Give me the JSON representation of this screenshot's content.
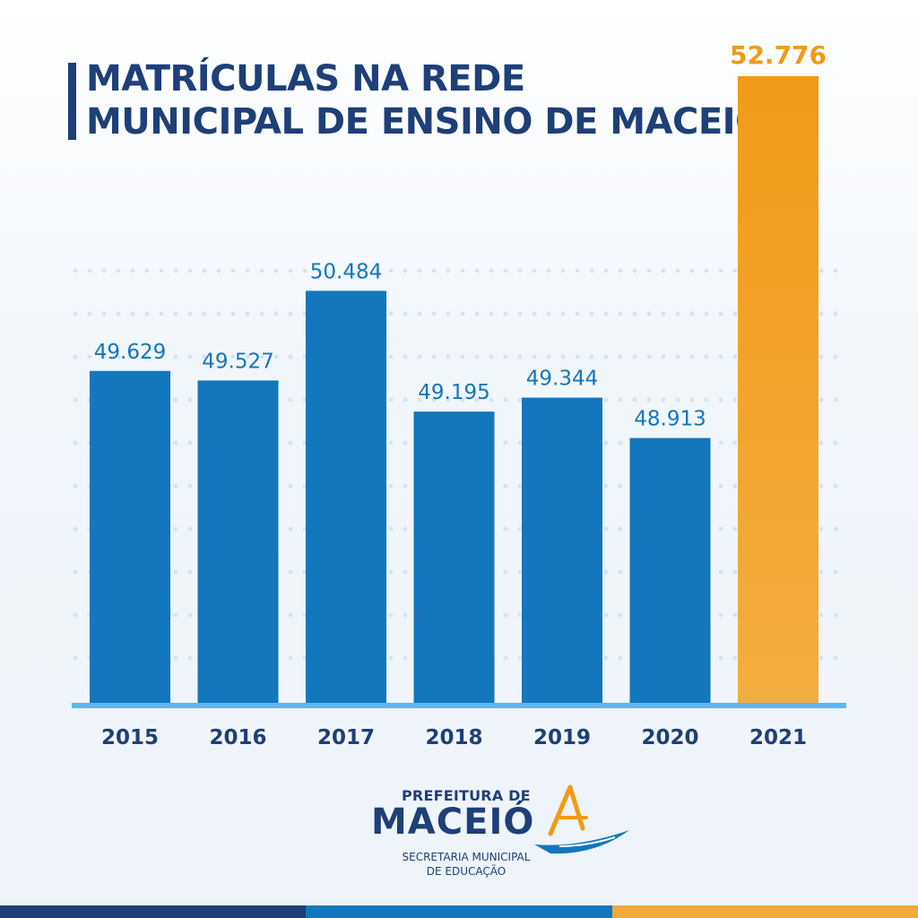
{
  "header": {
    "title_line1": "MATRÍCULAS NA REDE",
    "title_line2": "MUNICIPAL DE ENSINO DE MACEIÓ"
  },
  "chart_data": {
    "type": "bar",
    "categories": [
      "2015",
      "2016",
      "2017",
      "2018",
      "2019",
      "2020",
      "2021"
    ],
    "values": [
      49629,
      49527,
      50484,
      49195,
      49344,
      48913,
      52776
    ],
    "value_labels": [
      "49.629",
      "49.527",
      "50.484",
      "49.195",
      "49.344",
      "48.913",
      "52.776"
    ],
    "highlight_index": 6,
    "title": "MATRÍCULAS NA REDE MUNICIPAL DE ENSINO DE MACEIÓ",
    "xlabel": "",
    "ylabel": "",
    "grid": true,
    "colors": {
      "bar": "#1277bd",
      "highlight_bar": "#f19a18",
      "value_label": "#1277bd",
      "highlight_label": "#f19a18",
      "category_label": "#1e3f78",
      "baseline": "#5bb8ee",
      "grid_dots": "#d3e3f1"
    }
  },
  "logo": {
    "line1": "PREFEITURA DE",
    "line2": "MACEIÓ",
    "dept_line1": "SECRETARIA MUNICIPAL",
    "dept_line2": "DE EDUCAÇÃO"
  },
  "footer_colors": [
    "#1e3f78",
    "#1277bd",
    "#f2a93b"
  ]
}
